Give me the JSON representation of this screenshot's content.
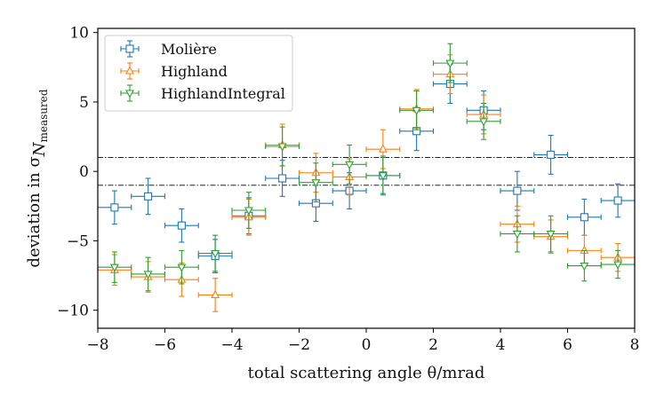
{
  "chart_data": {
    "type": "scatter",
    "title": "",
    "xlabel": "total scattering angle θ/mrad",
    "ylabel": {
      "prefix": "deviation in σ",
      "subscript": "N",
      "subsubscript": "measured"
    },
    "xlim": [
      -8,
      8
    ],
    "ylim": [
      -11.3,
      10.3
    ],
    "xticks": [
      -8,
      -6,
      -4,
      -2,
      0,
      2,
      4,
      6,
      8
    ],
    "yticks": [
      -10,
      -5,
      0,
      5,
      10
    ],
    "xtick_labels": [
      "−8",
      "−6",
      "−4",
      "−2",
      "0",
      "2",
      "4",
      "6",
      "8"
    ],
    "ytick_labels": [
      "−10",
      "−5",
      "0",
      "5",
      "10"
    ],
    "reference_lines": [
      1,
      -1
    ],
    "x_error": 0.5,
    "legend_position": "top-left",
    "series": [
      {
        "name": "Molière",
        "color": "#1f77b4",
        "marker": "square",
        "x": [
          -7.5,
          -6.5,
          -5.5,
          -4.5,
          -3.5,
          -2.5,
          -1.5,
          -0.5,
          0.5,
          1.5,
          2.5,
          3.5,
          4.5,
          5.5,
          6.5,
          7.5
        ],
        "y": [
          -2.6,
          -1.8,
          -3.9,
          -6.1,
          -3.2,
          -0.5,
          -2.3,
          -1.4,
          -0.3,
          2.9,
          6.3,
          4.4,
          -1.4,
          1.2,
          -3.3,
          -2.1
        ],
        "yerr": [
          1.2,
          1.3,
          1.2,
          1.2,
          1.3,
          1.3,
          1.3,
          1.3,
          1.3,
          1.4,
          1.4,
          1.4,
          1.4,
          1.4,
          1.3,
          1.2
        ]
      },
      {
        "name": "Highland",
        "color": "#ff7f0e",
        "marker": "triangle-up",
        "x": [
          -7.5,
          -6.5,
          -5.5,
          -4.5,
          -3.5,
          -2.5,
          -1.5,
          -0.5,
          0.5,
          1.5,
          2.5,
          3.5,
          4.5,
          5.5,
          6.5,
          7.5
        ],
        "y": [
          -7.1,
          -7.6,
          -7.8,
          -8.9,
          -3.3,
          1.9,
          -0.1,
          -0.4,
          1.6,
          4.5,
          7.0,
          4.1,
          -3.8,
          -4.7,
          -5.7,
          -6.2
        ],
        "yerr": [
          1.1,
          1.1,
          1.2,
          1.2,
          1.3,
          1.5,
          1.4,
          1.3,
          1.4,
          1.4,
          1.4,
          1.4,
          1.3,
          1.2,
          1.1,
          1.0
        ]
      },
      {
        "name": "HighlandIntegral",
        "color": "#2ca02c",
        "marker": "triangle-down",
        "x": [
          -7.5,
          -6.5,
          -5.5,
          -4.5,
          -3.5,
          -2.5,
          -1.5,
          -0.5,
          0.5,
          1.5,
          2.5,
          3.5,
          4.5,
          5.5,
          6.5,
          7.5
        ],
        "y": [
          -6.9,
          -7.4,
          -6.9,
          -5.9,
          -2.8,
          1.8,
          -0.8,
          0.5,
          -0.3,
          4.4,
          7.8,
          3.6,
          -4.5,
          -4.5,
          -6.8,
          -6.7
        ],
        "yerr": [
          1.1,
          1.2,
          1.2,
          1.3,
          1.3,
          1.4,
          1.4,
          1.4,
          1.4,
          1.4,
          1.4,
          1.3,
          1.3,
          1.3,
          1.1,
          1.0
        ]
      }
    ]
  }
}
